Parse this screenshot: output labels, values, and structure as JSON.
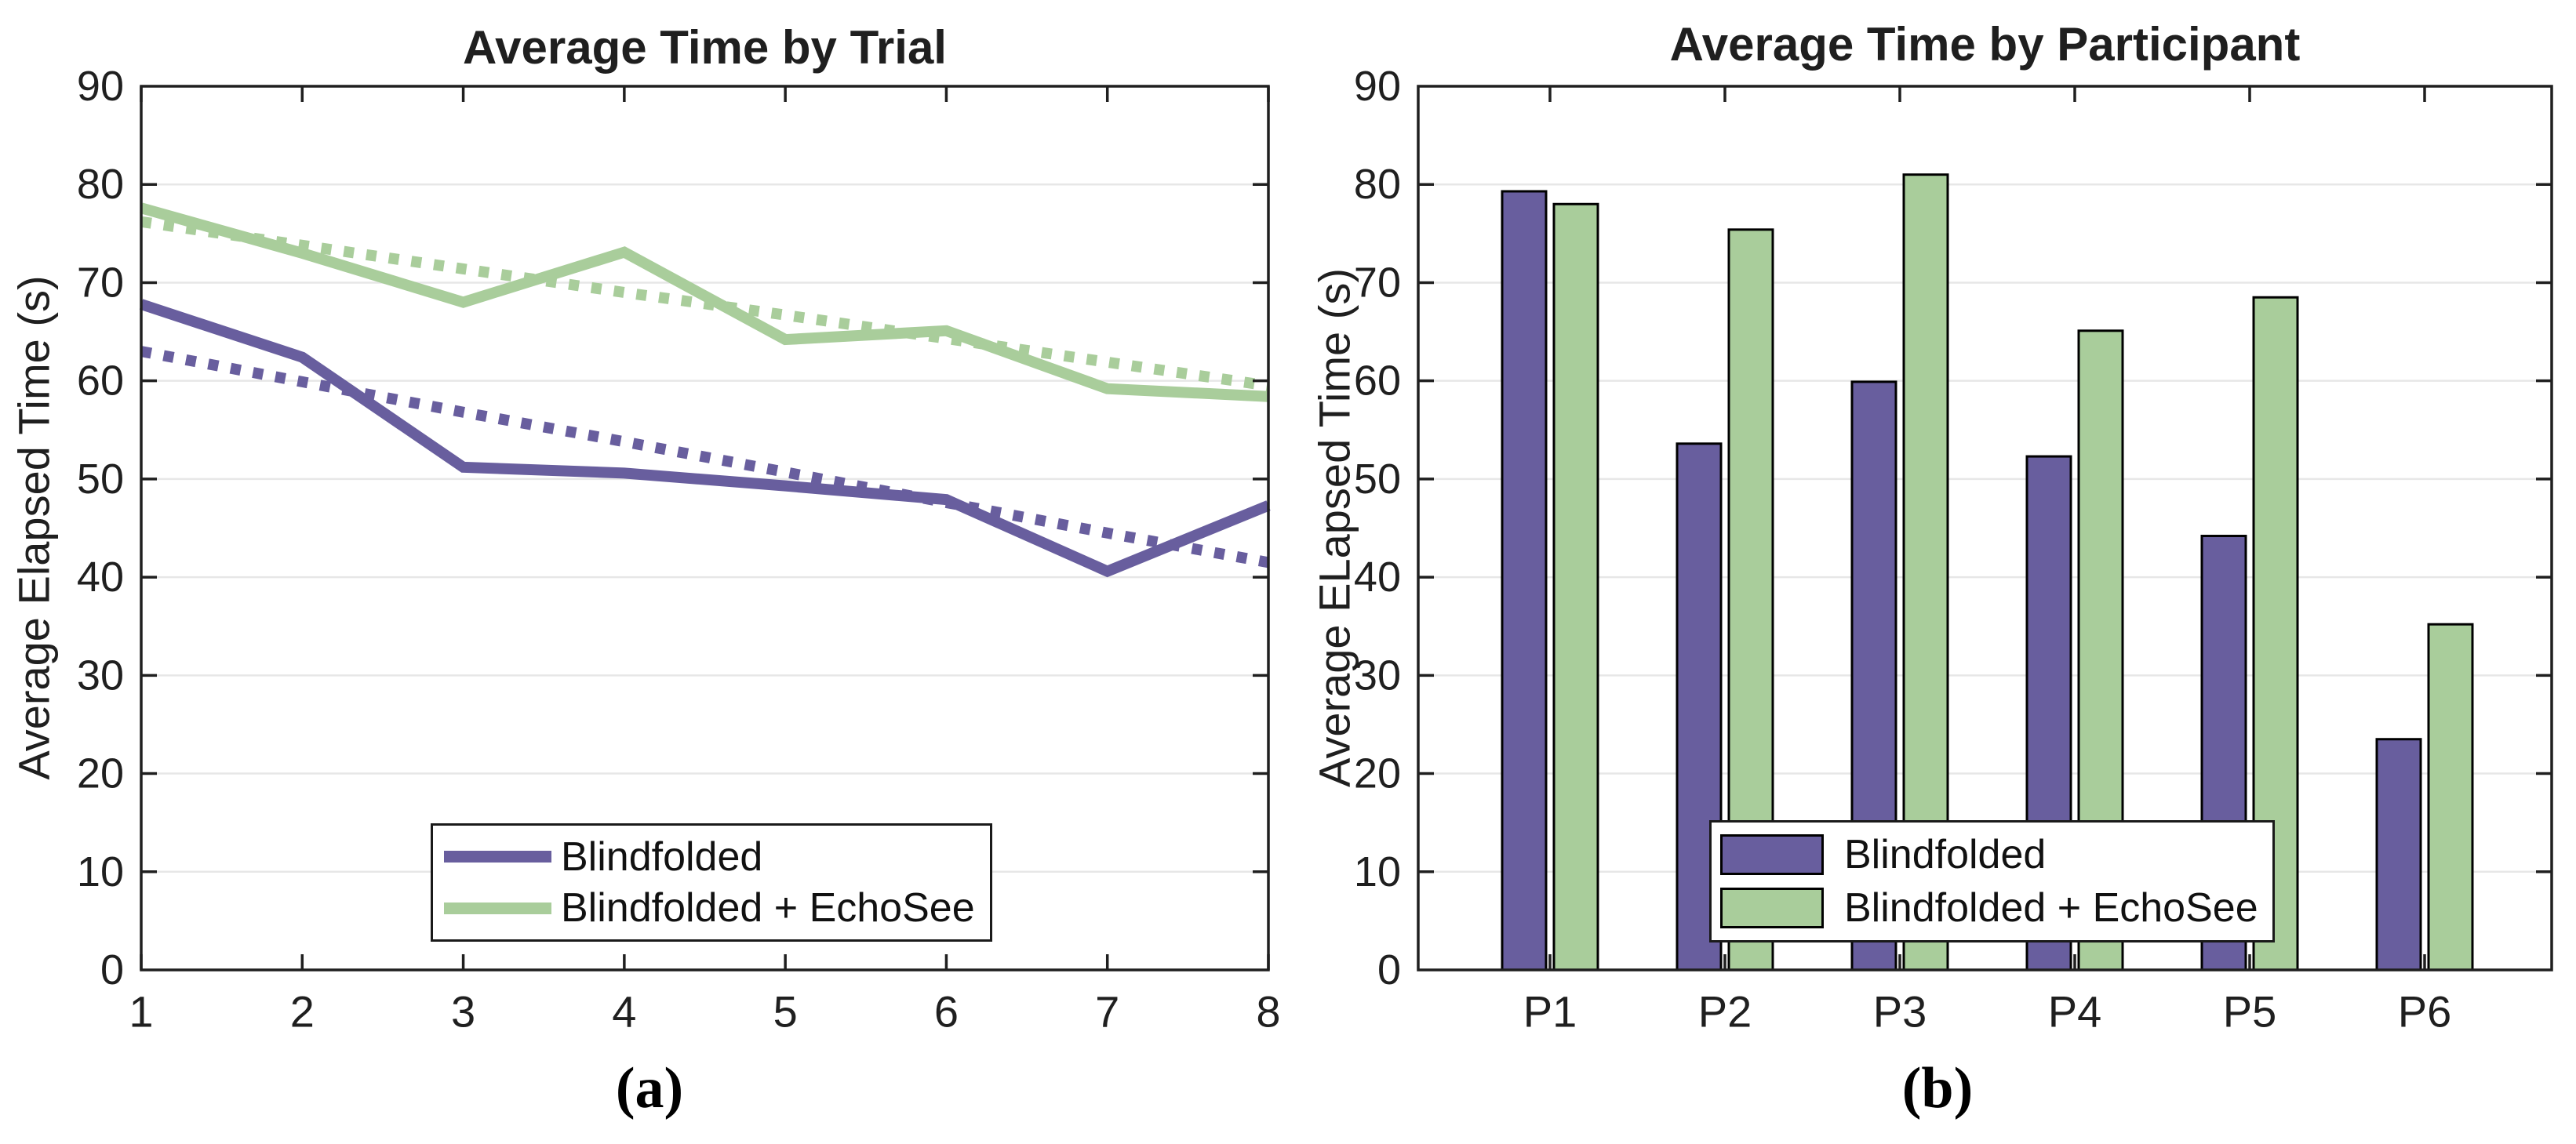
{
  "colors": {
    "blindfolded": "#685E9E",
    "echosee": "#A9CD9B",
    "bar_edge": "#000000",
    "axis": "#1f1f1f",
    "grid": "#e7e7e7",
    "text": "#1f1f1f"
  },
  "legend": {
    "blindfolded": "Blindfolded",
    "echosee": "Blindfolded + EchoSee"
  },
  "captions": {
    "left": "(a)",
    "right": "(b)"
  },
  "chart_data": [
    {
      "id": "trial",
      "type": "line",
      "title": "Average Time by Trial",
      "ylabel": "Average Elapsed Time (s)",
      "xlabel": "",
      "x": [
        1,
        2,
        3,
        4,
        5,
        6,
        7,
        8
      ],
      "x_tick_labels": [
        "1",
        "2",
        "3",
        "4",
        "5",
        "6",
        "7",
        "8"
      ],
      "y_tick_labels": [
        "0",
        "10",
        "20",
        "30",
        "40",
        "50",
        "60",
        "70",
        "80",
        "90"
      ],
      "y_ticks": [
        0,
        10,
        20,
        30,
        40,
        50,
        60,
        70,
        80,
        90
      ],
      "ylim": [
        0,
        90
      ],
      "grid": "horizontal",
      "legend_position": "lower center-left inside",
      "series": [
        {
          "name": "Blindfolded trend",
          "style": "dotted",
          "color_key": "blindfolded",
          "values": [
            63.0,
            59.9,
            56.8,
            53.8,
            50.7,
            47.6,
            44.5,
            41.5
          ]
        },
        {
          "name": "Blindfolded + EchoSee trend",
          "style": "dotted",
          "color_key": "echosee",
          "values": [
            76.2,
            73.8,
            71.4,
            69.0,
            66.7,
            64.3,
            61.9,
            59.5
          ]
        },
        {
          "name": "Blindfolded",
          "style": "solid",
          "color_key": "blindfolded",
          "values": [
            67.8,
            62.4,
            51.2,
            50.6,
            49.3,
            47.9,
            40.6,
            47.3
          ]
        },
        {
          "name": "Blindfolded + EchoSee",
          "style": "solid",
          "color_key": "echosee",
          "values": [
            77.6,
            73.0,
            68.0,
            73.1,
            64.2,
            65.1,
            59.2,
            58.4
          ]
        }
      ]
    },
    {
      "id": "participant",
      "type": "bar",
      "title": "Average Time by Participant",
      "ylabel": "Average ELapsed Time (s)",
      "xlabel": "",
      "categories": [
        "P1",
        "P2",
        "P3",
        "P4",
        "P5",
        "P6"
      ],
      "y_tick_labels": [
        "0",
        "10",
        "20",
        "30",
        "40",
        "50",
        "60",
        "70",
        "80",
        "90"
      ],
      "y_ticks": [
        0,
        10,
        20,
        30,
        40,
        50,
        60,
        70,
        80,
        90
      ],
      "ylim": [
        0,
        90
      ],
      "grid": "horizontal",
      "legend_position": "lower center inside",
      "series": [
        {
          "name": "Blindfolded",
          "color_key": "blindfolded",
          "values": [
            79.3,
            53.6,
            59.9,
            52.3,
            44.2,
            23.5
          ]
        },
        {
          "name": "Blindfolded + EchoSee",
          "color_key": "echosee",
          "values": [
            78.0,
            75.4,
            81.0,
            65.1,
            68.5,
            35.2
          ]
        }
      ]
    }
  ]
}
